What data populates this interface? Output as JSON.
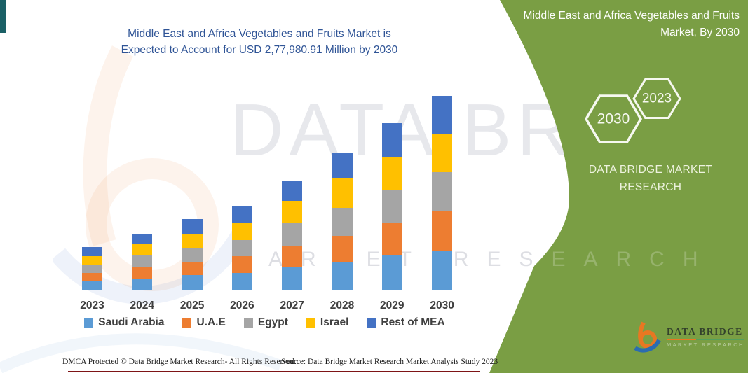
{
  "chart": {
    "title_line1": "Middle East and Africa Vegetables and Fruits Market is",
    "title_line2": "Expected to Account for USD 2,77,980.91 Million by 2030"
  },
  "chart_data": {
    "type": "bar",
    "stacked": true,
    "title": "Middle East and Africa Vegetables and Fruits Market is Expected to Account for USD 2,77,980.91 Million by 2030",
    "unit": "USD Million",
    "categories": [
      "2023",
      "2024",
      "2025",
      "2026",
      "2027",
      "2028",
      "2029",
      "2030"
    ],
    "series": [
      {
        "name": "Saudi Arabia",
        "color": "#5B9BD5",
        "values": [
          11600,
          15300,
          21000,
          23800,
          31700,
          40000,
          49000,
          56500
        ]
      },
      {
        "name": "U.A.E",
        "color": "#ED7D31",
        "values": [
          12400,
          18000,
          19400,
          24700,
          31700,
          37300,
          46600,
          56400
        ]
      },
      {
        "name": "Egypt",
        "color": "#A5A5A5",
        "values": [
          12600,
          16000,
          20000,
          22700,
          32700,
          40000,
          47400,
          55800
        ]
      },
      {
        "name": "Israel",
        "color": "#FFC000",
        "values": [
          12000,
          16000,
          19700,
          24000,
          31300,
          42700,
          47600,
          54500
        ]
      },
      {
        "name": "Rest of MEA",
        "color": "#4472C4",
        "values": [
          12400,
          14000,
          21100,
          24700,
          29300,
          36700,
          48400,
          54780.91
        ]
      }
    ],
    "total_2030": "USD 2,77,980.91 Million",
    "y_axis_visible": false,
    "grid": false,
    "legend_position": "bottom"
  },
  "panel": {
    "title": "Middle East and Africa Vegetables and Fruits Market, By 2030",
    "hexagon_large": "2030",
    "hexagon_small": "2023",
    "brand_line1": "DATA BRIDGE MARKET",
    "brand_line2": "RESEARCH",
    "bg_color": "#7A9E44"
  },
  "footer": {
    "dmca": "DMCA Protected © Data Bridge Market Research-  All Rights Reserved.",
    "source": "Source: Data Bridge Market Research  Market Analysis Study 2023"
  },
  "logo": {
    "name": "DATA BRIDGE",
    "subtitle": "MARKET RESEARCH"
  },
  "watermark": {
    "line1": "DATA BRIDGE",
    "line2": "MARKET RESEARCH"
  },
  "accents": {
    "teal_corner": "#1A6066",
    "bottom_line": "#7E1416",
    "title_color": "#2F5496"
  }
}
